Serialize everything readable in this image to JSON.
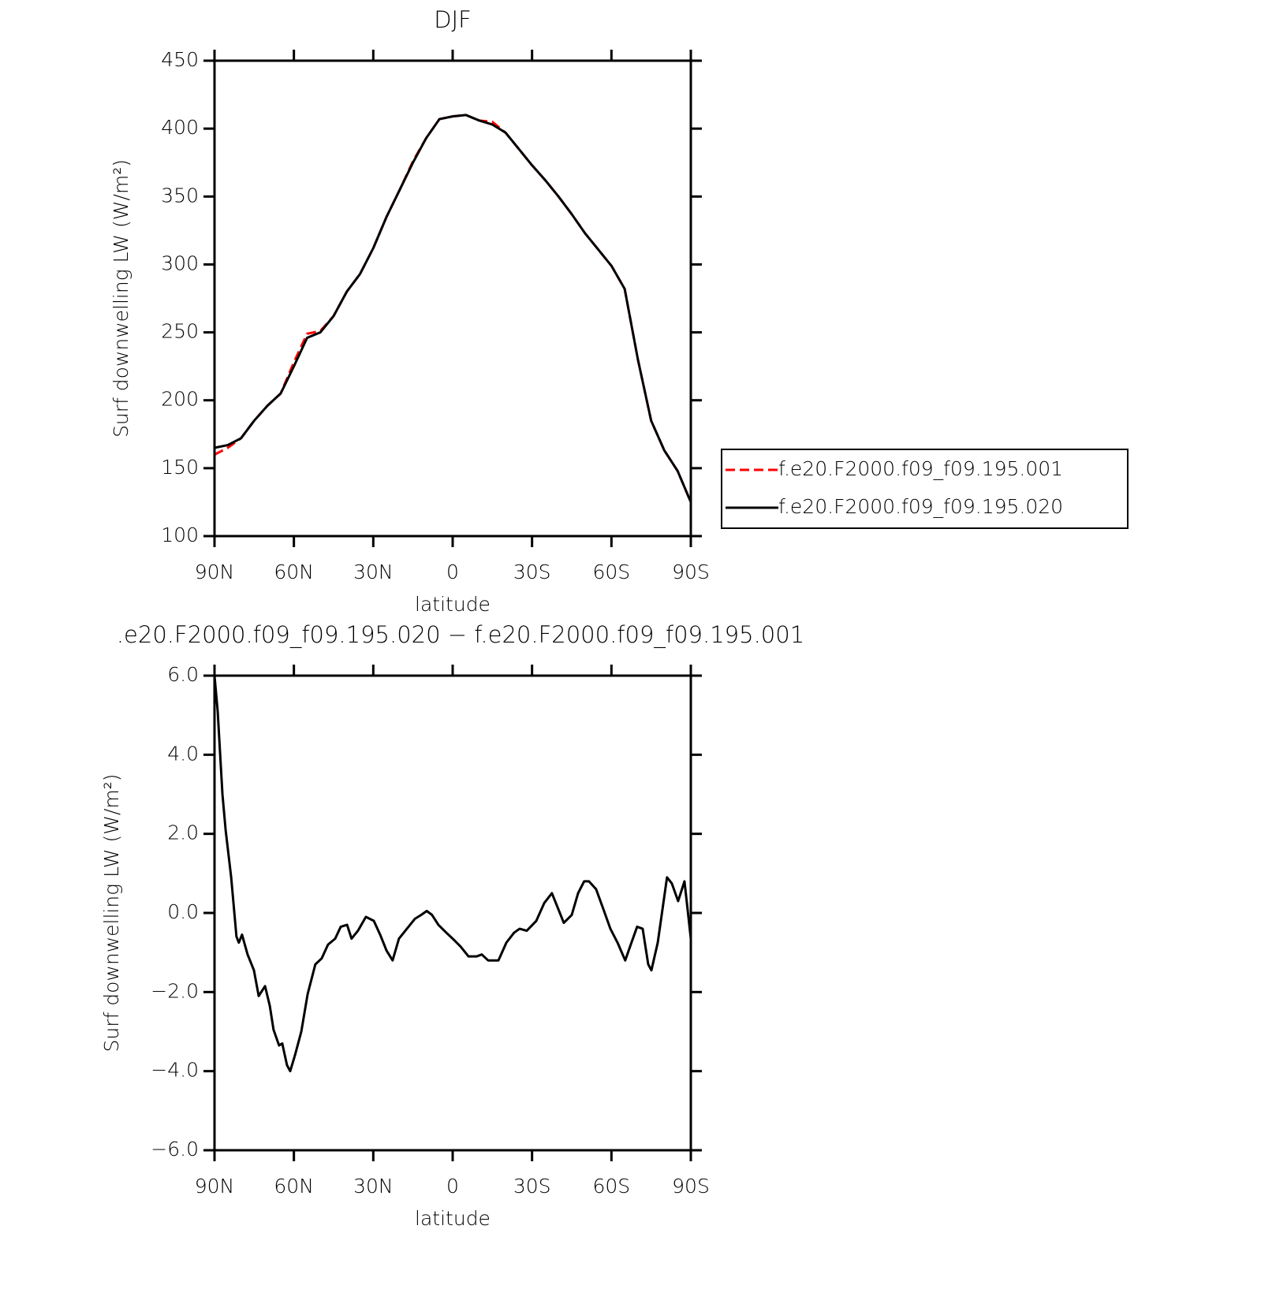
{
  "chart_data": [
    {
      "type": "line",
      "title": "DJF",
      "xlabel": "latitude",
      "ylabel": "Surf downwelling LW (W/m²)",
      "x": [
        90,
        85,
        80,
        75,
        70,
        65,
        60,
        55,
        50,
        45,
        40,
        35,
        30,
        25,
        20,
        15,
        10,
        5,
        0,
        -5,
        -10,
        -15,
        -20,
        -25,
        -30,
        -35,
        -40,
        -45,
        -50,
        -55,
        -60,
        -65,
        -70,
        -75,
        -80,
        -85,
        -90
      ],
      "series": [
        {
          "name": "f.e20.F2000.f09_f09.195.001",
          "color": "#ff0000",
          "linestyle": "dashed",
          "values": [
            160,
            165,
            172,
            185,
            196,
            205,
            228,
            249,
            251,
            262,
            280,
            293,
            312,
            335,
            355,
            376,
            393,
            407,
            409,
            410,
            406,
            405,
            397,
            385,
            373,
            362,
            350,
            337,
            323,
            311,
            299,
            282,
            230,
            185,
            163,
            148,
            125
          ]
        },
        {
          "name": "f.e20.F2000.f09_f09.195.020",
          "color": "#000000",
          "linestyle": "solid",
          "values": [
            165,
            167,
            172,
            185,
            196,
            205,
            225,
            246,
            250,
            262,
            280,
            293,
            312,
            335,
            355,
            375,
            393,
            407,
            409,
            410,
            406,
            403,
            397,
            385,
            373,
            362,
            350,
            337,
            323,
            311,
            299,
            282,
            230,
            185,
            163,
            148,
            125
          ]
        }
      ],
      "xlim": [
        90,
        -90
      ],
      "xticks": [
        {
          "value": 90,
          "label": "90N"
        },
        {
          "value": 60,
          "label": "60N"
        },
        {
          "value": 30,
          "label": "30N"
        },
        0,
        {
          "value": -30,
          "label": "30S"
        },
        {
          "value": -60,
          "label": "60S"
        },
        {
          "value": -90,
          "label": "90S"
        }
      ],
      "ylim": [
        100,
        450
      ],
      "yticks": [
        100,
        150,
        200,
        250,
        300,
        350,
        400,
        450
      ],
      "legend": "right"
    },
    {
      "type": "line",
      "title": ".e20.F2000.f09_f09.195.020 − f.e20.F2000.f09_f09.195.001",
      "xlabel": "latitude",
      "ylabel": "Surf downwelling LW (W/m²)",
      "x": [
        90,
        88.8,
        87,
        85.8,
        83.7,
        81.7,
        80.8,
        79.6,
        77.5,
        75.1,
        73.3,
        70.9,
        69.1,
        67.7,
        65.6,
        64.4,
        62.6,
        61.4,
        59.6,
        57.2,
        54.8,
        51.9,
        49.5,
        47.1,
        44.4,
        42.3,
        39.9,
        38.2,
        35.8,
        32.8,
        29.8,
        27.4,
        25,
        22.7,
        20.3,
        17.3,
        14.3,
        11.9,
        9.8,
        7.8,
        5.4,
        2.4,
        0,
        -3,
        -6,
        -9,
        -11,
        -13.4,
        -17.3,
        -20.3,
        -23.2,
        -25.3,
        -28,
        -31.6,
        -34.6,
        -37.5,
        -39.6,
        -42,
        -45,
        -47.4,
        -49.7,
        -51.5,
        -54.2,
        -57.2,
        -59.6,
        -62.3,
        -65.2,
        -67.3,
        -69.7,
        -71.8,
        -73.9,
        -75.1,
        -77.5,
        -79.2,
        -81,
        -82.8,
        -85.2,
        -87.6,
        -90
      ],
      "series": [
        {
          "color": "#000000",
          "linestyle": "solid",
          "values": [
            6.0,
            5.1,
            3.0,
            2.1,
            0.9,
            -0.6,
            -0.75,
            -0.55,
            -1.05,
            -1.45,
            -2.1,
            -1.85,
            -2.35,
            -2.95,
            -3.35,
            -3.3,
            -3.85,
            -4.0,
            -3.6,
            -3.0,
            -2.05,
            -1.3,
            -1.15,
            -0.8,
            -0.65,
            -0.35,
            -0.3,
            -0.65,
            -0.45,
            -0.1,
            -0.2,
            -0.55,
            -0.95,
            -1.2,
            -0.65,
            -0.4,
            -0.15,
            -0.05,
            0.05,
            -0.05,
            -0.3,
            -0.5,
            -0.65,
            -0.85,
            -1.1,
            -1.1,
            -1.05,
            -1.2,
            -1.2,
            -0.75,
            -0.5,
            -0.4,
            -0.45,
            -0.2,
            0.25,
            0.5,
            0.15,
            -0.25,
            -0.05,
            0.5,
            0.8,
            0.8,
            0.6,
            0.05,
            -0.4,
            -0.75,
            -1.2,
            -0.8,
            -0.35,
            -0.4,
            -1.3,
            -1.45,
            -0.75,
            0.05,
            0.9,
            0.75,
            0.3,
            0.8,
            -0.65
          ]
        }
      ],
      "xlim": [
        90,
        -90
      ],
      "xticks": [
        {
          "value": 90,
          "label": "90N"
        },
        {
          "value": 60,
          "label": "60N"
        },
        {
          "value": 30,
          "label": "30N"
        },
        0,
        {
          "value": -30,
          "label": "30S"
        },
        {
          "value": -60,
          "label": "60S"
        },
        {
          "value": -90,
          "label": "90S"
        }
      ],
      "ylim": [
        -6,
        6
      ],
      "yticks": [
        {
          "value": -6,
          "label": "−6.0"
        },
        {
          "value": -4,
          "label": "−4.0"
        },
        {
          "value": -2,
          "label": "−2.0"
        },
        {
          "value": 0,
          "label": "0.0"
        },
        {
          "value": 2,
          "label": "2.0"
        },
        {
          "value": 4,
          "label": "4.0"
        },
        {
          "value": 6,
          "label": "6.0"
        }
      ]
    }
  ]
}
